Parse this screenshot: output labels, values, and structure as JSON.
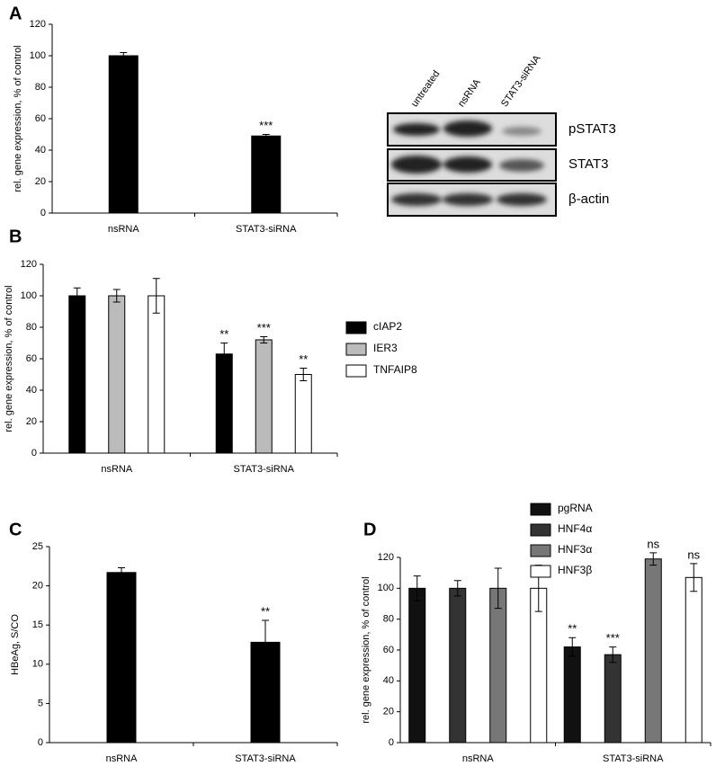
{
  "chart_data": [
    {
      "type": "bar",
      "panel": "A",
      "ylabel": "rel. gene expression, % of control",
      "categories": [
        "nsRNA",
        "STAT3-siRNA"
      ],
      "values": [
        100,
        49
      ],
      "errors": [
        2,
        1
      ],
      "annotations": [
        null,
        "***"
      ],
      "color": "#000000",
      "ylim": [
        0,
        120
      ],
      "yticks": [
        0,
        20,
        40,
        60,
        80,
        100,
        120
      ]
    },
    {
      "type": "grouped-bar",
      "panel": "B",
      "ylabel": "rel. gene expression, % of control",
      "categories": [
        "nsRNA",
        "STAT3-siRNA"
      ],
      "series": [
        {
          "name": "cIAP2",
          "color": "#000000",
          "values": [
            100,
            63
          ],
          "errors": [
            5,
            7
          ],
          "annotations": [
            null,
            "**"
          ]
        },
        {
          "name": "IER3",
          "color": "#bbbbbb",
          "values": [
            100,
            72
          ],
          "errors": [
            4,
            2
          ],
          "annotations": [
            null,
            "***"
          ]
        },
        {
          "name": "TNFAIP8",
          "color": "#ffffff",
          "values": [
            100,
            50
          ],
          "errors": [
            11,
            4
          ],
          "annotations": [
            null,
            "**"
          ]
        }
      ],
      "ylim": [
        0,
        120
      ],
      "yticks": [
        0,
        20,
        40,
        60,
        80,
        100,
        120
      ]
    },
    {
      "type": "bar",
      "panel": "C",
      "ylabel": "HBeAg, S/CO",
      "categories": [
        "nsRNA",
        "STAT3-siRNA"
      ],
      "values": [
        21.7,
        12.8
      ],
      "errors": [
        0.6,
        2.8
      ],
      "annotations": [
        null,
        "**"
      ],
      "color": "#000000",
      "ylim": [
        0,
        25
      ],
      "yticks": [
        0,
        5,
        10,
        15,
        20,
        25
      ]
    },
    {
      "type": "grouped-bar",
      "panel": "D",
      "ylabel": "rel. gene expression, % of control",
      "categories": [
        "nsRNA",
        "STAT3-siRNA"
      ],
      "series": [
        {
          "name": "pgRNA",
          "color": "#111111",
          "values": [
            100,
            62
          ],
          "errors": [
            8,
            6
          ],
          "annotations": [
            null,
            "**"
          ]
        },
        {
          "name": "HNF4α",
          "color": "#333333",
          "values": [
            100,
            57
          ],
          "errors": [
            5,
            5
          ],
          "annotations": [
            null,
            "***"
          ]
        },
        {
          "name": "HNF3α",
          "color": "#777777",
          "values": [
            100,
            119
          ],
          "errors": [
            13,
            4
          ],
          "annotations": [
            null,
            "ns"
          ]
        },
        {
          "name": "HNF3β",
          "color": "#ffffff",
          "values": [
            100,
            107
          ],
          "errors": [
            15,
            9
          ],
          "annotations": [
            null,
            "ns"
          ]
        }
      ],
      "ylim": [
        0,
        120
      ],
      "yticks": [
        0,
        20,
        40,
        60,
        80,
        100,
        120
      ]
    }
  ],
  "blot": {
    "lanes": [
      "untreated",
      "nsRNA",
      "STAT3-siRNA"
    ],
    "rows": [
      "pSTAT3",
      "STAT3",
      "β-actin"
    ]
  }
}
